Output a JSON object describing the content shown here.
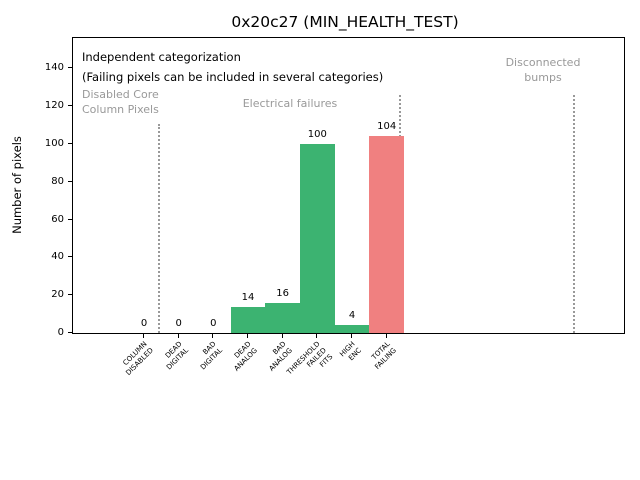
{
  "chart_data": {
    "type": "bar",
    "title": "0x20c27 (MIN_HEALTH_TEST)",
    "ylabel": "Number of pixels",
    "ylim": [
      0,
      157
    ],
    "yticks": [
      0,
      20,
      40,
      60,
      80,
      100,
      120,
      140
    ],
    "categories": [
      "COLUMN\nDISABLED",
      "DEAD\nDIGITAL",
      "BAD\nDIGITAL",
      "DEAD\nANALOG",
      "BAD\nANALOG",
      "THRESHOLD\nFAILED\nFITS",
      "HIGH\nENC",
      "TOTAL\nFAILING"
    ],
    "values": [
      0,
      0,
      0,
      14,
      16,
      100,
      4,
      104
    ],
    "value_labels": [
      "0",
      "0",
      "0",
      "14",
      "16",
      "100",
      "4",
      "104"
    ],
    "bar_colors": [
      "#3cb371",
      "#3cb371",
      "#3cb371",
      "#3cb371",
      "#3cb371",
      "#3cb371",
      "#3cb371",
      "#f08080"
    ],
    "grid": false,
    "legend": null,
    "annotation_line1": "Independent categorization",
    "annotation_line2": "(Failing pixels can be included in several categories)",
    "sections": [
      {
        "name": "disabled-core-column-pixels",
        "label": "Disabled Core\nColumn Pixels"
      },
      {
        "name": "electrical-failures",
        "label": "Electrical failures"
      },
      {
        "name": "disconnected-bumps",
        "label": "Disconnected\nbumps"
      }
    ],
    "colors": {
      "bar_green": "#3cb371",
      "bar_red": "#f08080",
      "section_label_gray": "#999999",
      "separator_gray": "#999999",
      "axis_black": "#000000"
    }
  }
}
